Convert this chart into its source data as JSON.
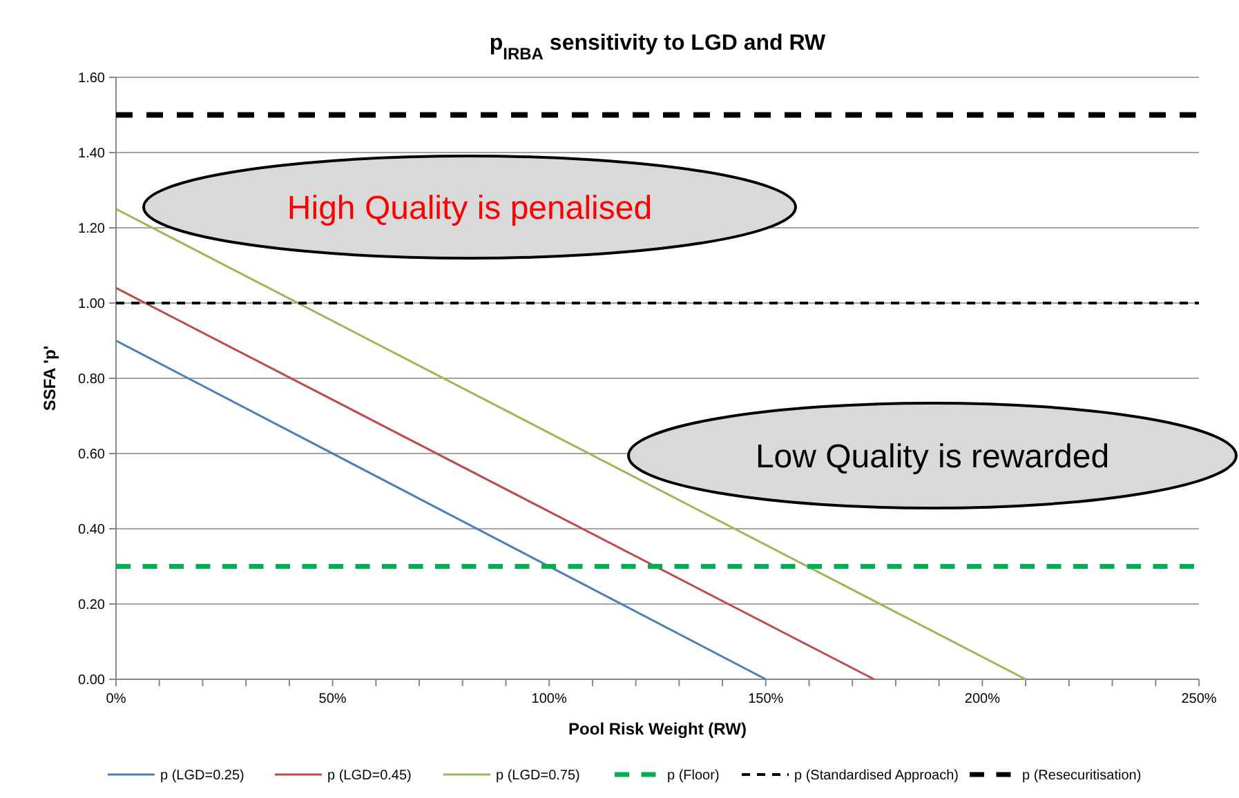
{
  "chart_data": {
    "type": "line",
    "title": "p$_{IRBA}$ sensitivity to LGD and RW",
    "xlabel": "Pool Risk Weight (RW)",
    "ylabel": "SSFA 'p'",
    "xlim": [
      0,
      250
    ],
    "xticks": [
      {
        "value": 0,
        "label": "0%"
      },
      {
        "value": 10,
        "label": null
      },
      {
        "value": 20,
        "label": null
      },
      {
        "value": 30,
        "label": null
      },
      {
        "value": 40,
        "label": null
      },
      {
        "value": 50,
        "label": "50%"
      },
      {
        "value": 60,
        "label": null
      },
      {
        "value": 70,
        "label": null
      },
      {
        "value": 80,
        "label": null
      },
      {
        "value": 90,
        "label": null
      },
      {
        "value": 100,
        "label": "100%"
      },
      {
        "value": 110,
        "label": null
      },
      {
        "value": 120,
        "label": null
      },
      {
        "value": 130,
        "label": null
      },
      {
        "value": 140,
        "label": null
      },
      {
        "value": 150,
        "label": "150%"
      },
      {
        "value": 160,
        "label": null
      },
      {
        "value": 170,
        "label": null
      },
      {
        "value": 180,
        "label": null
      },
      {
        "value": 190,
        "label": null
      },
      {
        "value": 200,
        "label": "200%"
      },
      {
        "value": 210,
        "label": null
      },
      {
        "value": 220,
        "label": null
      },
      {
        "value": 230,
        "label": null
      },
      {
        "value": 240,
        "label": null
      },
      {
        "value": 250,
        "label": "250%"
      }
    ],
    "ylim": [
      0,
      1.6
    ],
    "yticks": [
      {
        "value": 0,
        "label": "0.00"
      },
      {
        "value": 0.2,
        "label": "0.20"
      },
      {
        "value": 0.4,
        "label": "0.40"
      },
      {
        "value": 0.6,
        "label": "0.60"
      },
      {
        "value": 0.8,
        "label": "0.80"
      },
      {
        "value": 1,
        "label": "1.00"
      },
      {
        "value": 1.2,
        "label": "1.20"
      },
      {
        "value": 1.4,
        "label": "1.40"
      },
      {
        "value": 1.6,
        "label": "1.60"
      }
    ],
    "grid": "y",
    "legend": "bottom",
    "annotations": [
      "High Quality is penalised",
      "Low Quality is rewarded"
    ],
    "series": [
      {
        "name": "p (LGD=0.25)",
        "color": "#4a7ebb",
        "x": [
          0,
          150
        ],
        "values": [
          0.9,
          0
        ],
        "line_style": "solid"
      },
      {
        "name": "p (LGD=0.45)",
        "color": "#be4b48",
        "x": [
          0,
          175
        ],
        "values": [
          1.04,
          0
        ],
        "line_style": "solid"
      },
      {
        "name": "p (LGD=0.75)",
        "color": "#98b954",
        "x": [
          0,
          210
        ],
        "values": [
          1.25,
          0
        ],
        "line_style": "solid"
      },
      {
        "name": "p (Floor)",
        "color": "#00b050",
        "x": [
          0,
          250
        ],
        "values": [
          0.3,
          0.3
        ],
        "line_style": "dashed"
      },
      {
        "name": "p (Standardised Approach)",
        "color": "#000000",
        "x": [
          0,
          250
        ],
        "values": [
          1,
          1
        ],
        "line_style": "dashed"
      },
      {
        "name": "p (Resecuritisation)",
        "color": "#000000",
        "x": [
          0,
          250
        ],
        "values": [
          1.5,
          1.5
        ],
        "line_style": "dashed"
      }
    ]
  }
}
